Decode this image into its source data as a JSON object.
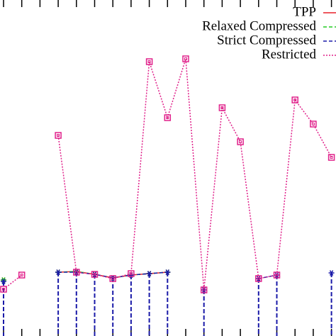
{
  "chart_data": {
    "type": "line",
    "categories": [
      null,
      null,
      null,
      null,
      null,
      null,
      null,
      null,
      null,
      null,
      null,
      null,
      null,
      null,
      null,
      null,
      null,
      null,
      null
    ],
    "ylim": [
      0,
      474
    ],
    "legend": "top-right",
    "series": [
      {
        "name": "TPP",
        "color": "#e8202a",
        "dash": "solid",
        "marker": "star",
        "values": [
          79,
          null,
          null,
          90,
          91,
          87,
          82,
          86,
          88,
          90,
          null,
          null,
          null,
          null,
          null,
          null,
          null,
          null,
          null
        ]
      },
      {
        "name": "Relaxed Compressed",
        "color": "#22cc22",
        "dash": "dashed",
        "marker": "star",
        "values": [
          79,
          null,
          null,
          90,
          91,
          87,
          82,
          86,
          88,
          90,
          null,
          null,
          null,
          null,
          null,
          null,
          null,
          null,
          null
        ]
      },
      {
        "name": "Strict Compressed",
        "color": "#1a1aa8",
        "dash": "dashed",
        "marker": "star",
        "stems": true,
        "values": [
          77,
          null,
          null,
          90,
          90,
          87,
          82,
          86,
          88,
          90,
          null,
          65,
          null,
          null,
          81,
          86,
          null,
          null,
          89
        ]
      },
      {
        "name": "Restricted",
        "color": "#e0208a",
        "dash": "dotted",
        "marker": "square",
        "values": [
          66,
          86,
          null,
          283,
          90,
          87,
          81,
          88,
          387,
          308,
          391,
          65,
          322,
          274,
          81,
          86,
          333,
          299,
          252
        ]
      }
    ]
  }
}
